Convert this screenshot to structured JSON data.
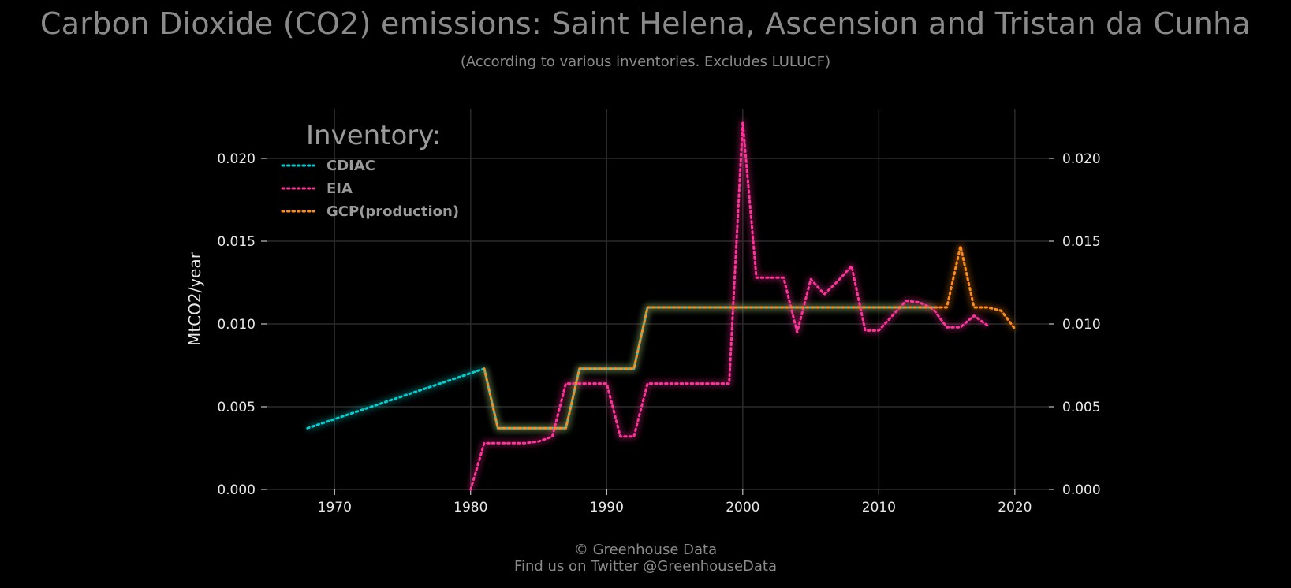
{
  "header": {
    "title": "Carbon Dioxide (CO2) emissions: Saint Helena, Ascension and Tristan da Cunha",
    "subtitle": "(According to various inventories. Excludes LULUCF)"
  },
  "footer": {
    "copyright": "© Greenhouse Data",
    "twitter": "Find us on Twitter @GreenhouseData"
  },
  "chart_data": {
    "type": "line",
    "ylabel": "MtCO2/year",
    "xlim": [
      1965,
      2022.5
    ],
    "ylim": [
      0,
      0.023
    ],
    "x_ticks": [
      1970,
      1980,
      1990,
      2000,
      2010,
      2020
    ],
    "y_ticks": [
      0.0,
      0.005,
      0.01,
      0.015,
      0.02
    ],
    "y_tick_labels": [
      "0.000",
      "0.005",
      "0.010",
      "0.015",
      "0.020"
    ],
    "grid": true,
    "legend": {
      "title": "Inventory:",
      "placement": "top-left"
    },
    "series": [
      {
        "name": "CDIAC",
        "color": "#00d0d0",
        "x": [
          1968,
          1981,
          1982,
          1983,
          1984,
          1985,
          1986,
          1987,
          1988,
          1989,
          1990,
          1991,
          1992,
          1993,
          1994,
          1995,
          1996,
          1997,
          1998,
          1999,
          2000,
          2001,
          2002,
          2003,
          2004,
          2005,
          2006,
          2007,
          2008,
          2009,
          2010,
          2011,
          2012,
          2013,
          2014
        ],
        "y": [
          0.0037,
          0.0073,
          0.0037,
          0.0037,
          0.0037,
          0.0037,
          0.0037,
          0.0037,
          0.0073,
          0.0073,
          0.0073,
          0.0073,
          0.0073,
          0.011,
          0.011,
          0.011,
          0.011,
          0.011,
          0.011,
          0.011,
          0.011,
          0.011,
          0.011,
          0.011,
          0.011,
          0.011,
          0.011,
          0.011,
          0.011,
          0.011,
          0.011,
          0.011,
          0.011,
          0.011,
          0.011
        ]
      },
      {
        "name": "EIA",
        "color": "#ff3399",
        "x": [
          1980,
          1981,
          1982,
          1983,
          1984,
          1985,
          1986,
          1987,
          1988,
          1989,
          1990,
          1991,
          1992,
          1993,
          1994,
          1995,
          1996,
          1997,
          1998,
          1999,
          2000,
          2001,
          2002,
          2003,
          2004,
          2005,
          2006,
          2007,
          2008,
          2009,
          2010,
          2011,
          2012,
          2013,
          2014,
          2015,
          2016,
          2017,
          2018
        ],
        "y": [
          0.0,
          0.0028,
          0.0028,
          0.0028,
          0.0028,
          0.0029,
          0.0032,
          0.0064,
          0.0064,
          0.0064,
          0.0064,
          0.0032,
          0.0032,
          0.0064,
          0.0064,
          0.0064,
          0.0064,
          0.0064,
          0.0064,
          0.0064,
          0.0222,
          0.0128,
          0.0128,
          0.0128,
          0.0095,
          0.0127,
          0.0118,
          0.0126,
          0.0135,
          0.0096,
          0.0096,
          0.0105,
          0.0114,
          0.0113,
          0.0109,
          0.0098,
          0.0098,
          0.0105,
          0.0099
        ]
      },
      {
        "name": "GCP(production)",
        "color": "#ff8c1a",
        "x": [
          1981,
          1982,
          1983,
          1984,
          1985,
          1986,
          1987,
          1988,
          1989,
          1990,
          1991,
          1992,
          1993,
          1994,
          1995,
          1996,
          1997,
          1998,
          1999,
          2000,
          2001,
          2002,
          2003,
          2004,
          2005,
          2006,
          2007,
          2008,
          2009,
          2010,
          2011,
          2012,
          2013,
          2014,
          2015,
          2016,
          2017,
          2018,
          2019,
          2020
        ],
        "y": [
          0.0073,
          0.0037,
          0.0037,
          0.0037,
          0.0037,
          0.0037,
          0.0037,
          0.0073,
          0.0073,
          0.0073,
          0.0073,
          0.0073,
          0.011,
          0.011,
          0.011,
          0.011,
          0.011,
          0.011,
          0.011,
          0.011,
          0.011,
          0.011,
          0.011,
          0.011,
          0.011,
          0.011,
          0.011,
          0.011,
          0.011,
          0.011,
          0.011,
          0.011,
          0.011,
          0.011,
          0.011,
          0.0147,
          0.011,
          0.011,
          0.0108,
          0.0097
        ]
      }
    ]
  }
}
